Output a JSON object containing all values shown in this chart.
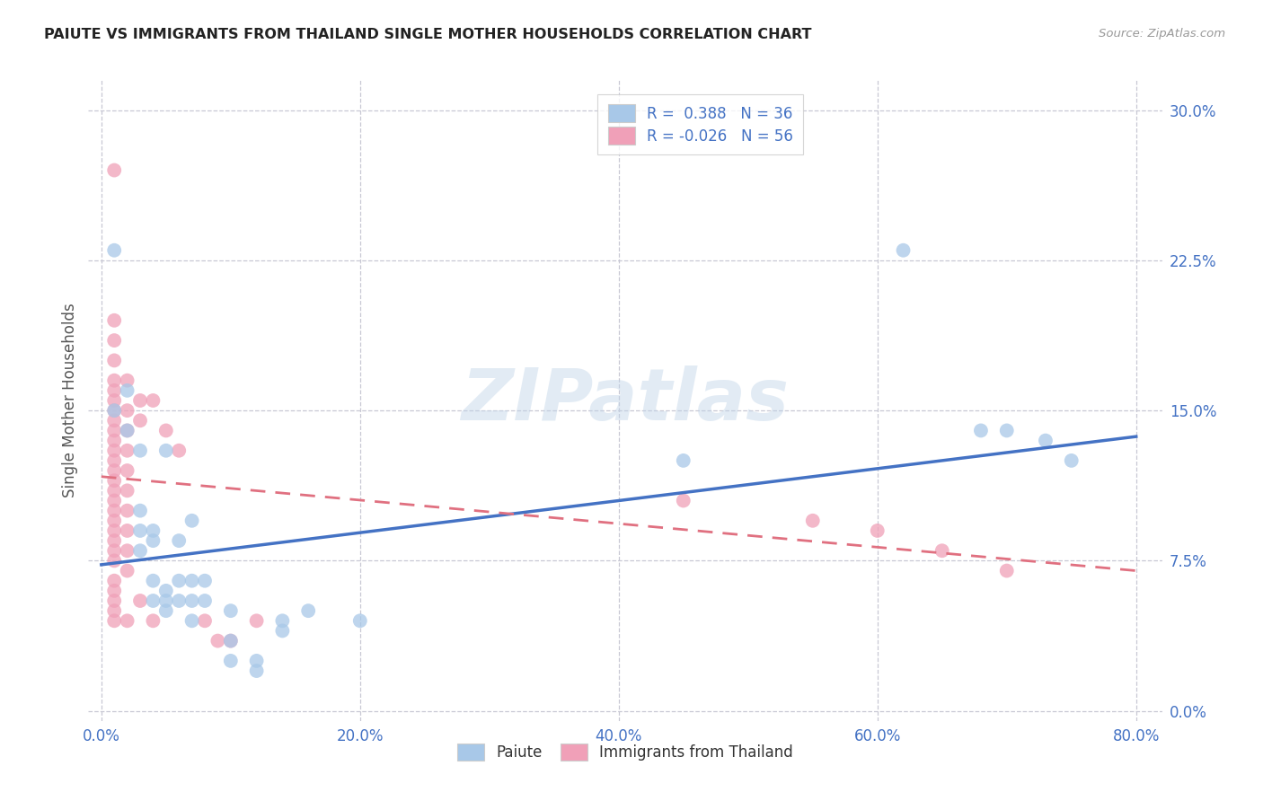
{
  "title": "PAIUTE VS IMMIGRANTS FROM THAILAND SINGLE MOTHER HOUSEHOLDS CORRELATION CHART",
  "source": "Source: ZipAtlas.com",
  "ylabel": "Single Mother Households",
  "xlabel_ticks": [
    "0.0%",
    "20.0%",
    "40.0%",
    "60.0%",
    "80.0%"
  ],
  "ylabel_ticks": [
    "0.0%",
    "7.5%",
    "15.0%",
    "22.5%",
    "30.0%"
  ],
  "xlim": [
    -0.01,
    0.82
  ],
  "ylim": [
    -0.005,
    0.315
  ],
  "legend_bottom": [
    "Paiute",
    "Immigrants from Thailand"
  ],
  "paiute_color": "#a8c8e8",
  "thailand_color": "#f0a0b8",
  "paiute_line_color": "#4472c4",
  "thailand_line_color": "#e07080",
  "background_color": "#ffffff",
  "grid_color": "#c8c8d4",
  "paiute_points": [
    [
      0.01,
      0.23
    ],
    [
      0.01,
      0.15
    ],
    [
      0.02,
      0.16
    ],
    [
      0.02,
      0.14
    ],
    [
      0.03,
      0.13
    ],
    [
      0.03,
      0.1
    ],
    [
      0.03,
      0.09
    ],
    [
      0.03,
      0.08
    ],
    [
      0.04,
      0.09
    ],
    [
      0.04,
      0.085
    ],
    [
      0.04,
      0.065
    ],
    [
      0.04,
      0.055
    ],
    [
      0.05,
      0.13
    ],
    [
      0.05,
      0.06
    ],
    [
      0.05,
      0.055
    ],
    [
      0.05,
      0.05
    ],
    [
      0.06,
      0.085
    ],
    [
      0.06,
      0.065
    ],
    [
      0.06,
      0.055
    ],
    [
      0.07,
      0.095
    ],
    [
      0.07,
      0.065
    ],
    [
      0.07,
      0.055
    ],
    [
      0.07,
      0.045
    ],
    [
      0.08,
      0.055
    ],
    [
      0.08,
      0.065
    ],
    [
      0.1,
      0.05
    ],
    [
      0.1,
      0.035
    ],
    [
      0.1,
      0.025
    ],
    [
      0.12,
      0.025
    ],
    [
      0.12,
      0.02
    ],
    [
      0.14,
      0.045
    ],
    [
      0.14,
      0.04
    ],
    [
      0.16,
      0.05
    ],
    [
      0.2,
      0.045
    ],
    [
      0.45,
      0.125
    ],
    [
      0.62,
      0.23
    ],
    [
      0.68,
      0.14
    ],
    [
      0.7,
      0.14
    ],
    [
      0.73,
      0.135
    ],
    [
      0.75,
      0.125
    ]
  ],
  "thailand_points": [
    [
      0.01,
      0.27
    ],
    [
      0.01,
      0.195
    ],
    [
      0.01,
      0.185
    ],
    [
      0.01,
      0.175
    ],
    [
      0.01,
      0.165
    ],
    [
      0.01,
      0.16
    ],
    [
      0.01,
      0.155
    ],
    [
      0.01,
      0.15
    ],
    [
      0.01,
      0.145
    ],
    [
      0.01,
      0.14
    ],
    [
      0.01,
      0.135
    ],
    [
      0.01,
      0.13
    ],
    [
      0.01,
      0.125
    ],
    [
      0.01,
      0.12
    ],
    [
      0.01,
      0.115
    ],
    [
      0.01,
      0.11
    ],
    [
      0.01,
      0.105
    ],
    [
      0.01,
      0.1
    ],
    [
      0.01,
      0.095
    ],
    [
      0.01,
      0.09
    ],
    [
      0.01,
      0.085
    ],
    [
      0.01,
      0.08
    ],
    [
      0.01,
      0.075
    ],
    [
      0.01,
      0.065
    ],
    [
      0.01,
      0.06
    ],
    [
      0.01,
      0.055
    ],
    [
      0.01,
      0.05
    ],
    [
      0.01,
      0.045
    ],
    [
      0.02,
      0.165
    ],
    [
      0.02,
      0.15
    ],
    [
      0.02,
      0.14
    ],
    [
      0.02,
      0.13
    ],
    [
      0.02,
      0.12
    ],
    [
      0.02,
      0.11
    ],
    [
      0.02,
      0.1
    ],
    [
      0.02,
      0.09
    ],
    [
      0.02,
      0.08
    ],
    [
      0.02,
      0.07
    ],
    [
      0.02,
      0.045
    ],
    [
      0.03,
      0.155
    ],
    [
      0.03,
      0.145
    ],
    [
      0.03,
      0.055
    ],
    [
      0.04,
      0.045
    ],
    [
      0.04,
      0.155
    ],
    [
      0.05,
      0.14
    ],
    [
      0.06,
      0.13
    ],
    [
      0.08,
      0.045
    ],
    [
      0.09,
      0.035
    ],
    [
      0.1,
      0.035
    ],
    [
      0.12,
      0.045
    ],
    [
      0.45,
      0.105
    ],
    [
      0.55,
      0.095
    ],
    [
      0.6,
      0.09
    ],
    [
      0.65,
      0.08
    ],
    [
      0.7,
      0.07
    ]
  ],
  "paiute_reg": [
    0.0,
    0.073,
    0.8,
    0.137
  ],
  "thailand_reg": [
    0.0,
    0.117,
    0.8,
    0.07
  ]
}
